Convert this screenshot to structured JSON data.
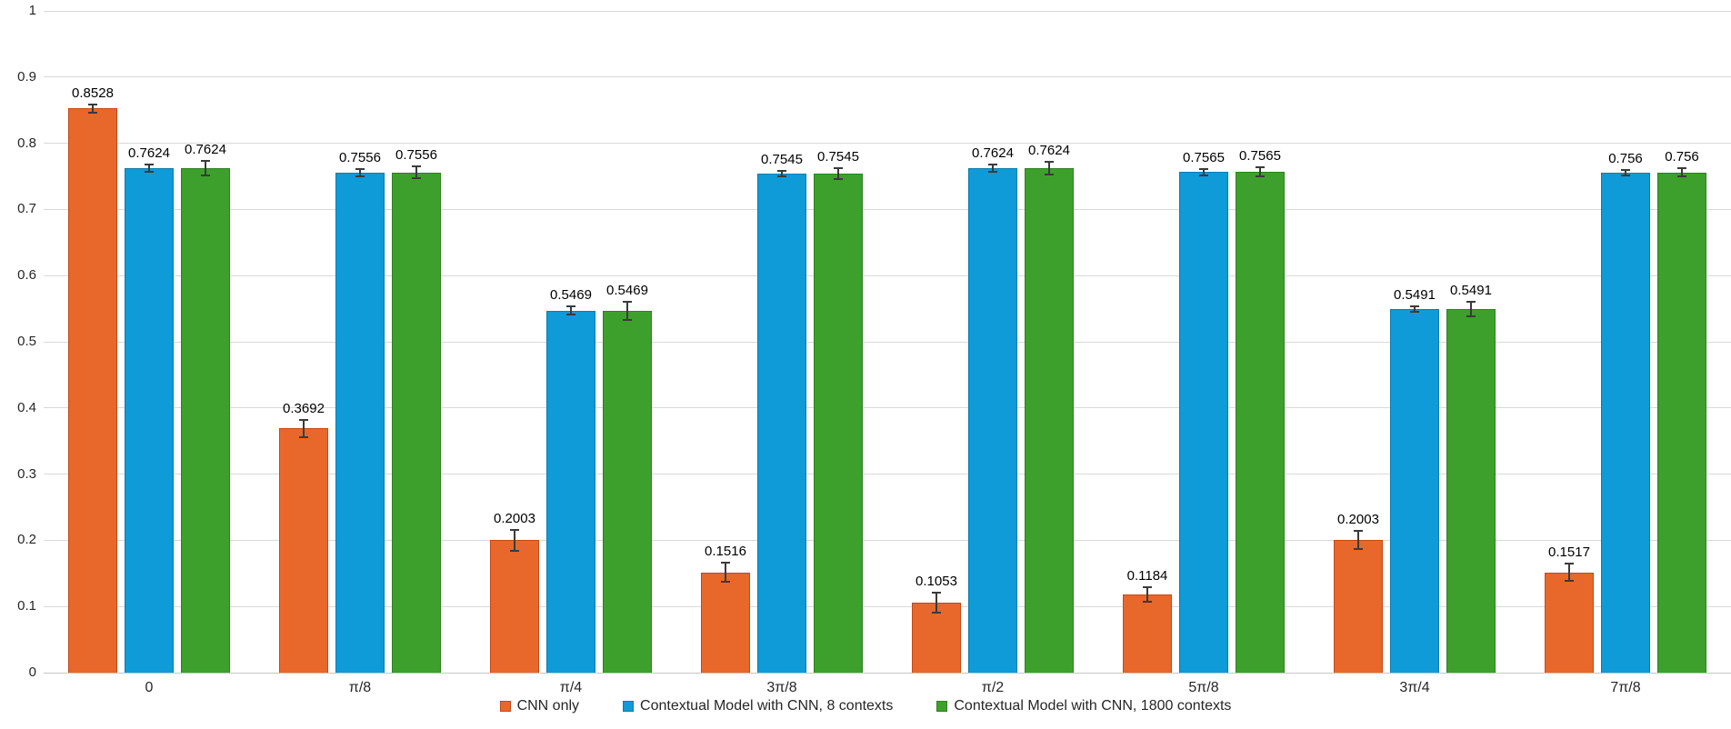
{
  "chart_data": {
    "type": "bar",
    "title": "",
    "xlabel": "",
    "ylabel": "",
    "ylim": [
      0,
      1
    ],
    "grid": true,
    "legend_position": "bottom",
    "y_ticks": [
      "1",
      "0.9",
      "0.8",
      "0.7",
      "0.6",
      "0.5",
      "0.4",
      "0.3",
      "0.2",
      "0.1",
      "0"
    ],
    "categories": [
      "0",
      "π/8",
      "π/4",
      "3π/8",
      "π/2",
      "5π/8",
      "3π/4",
      "7π/8"
    ],
    "series": [
      {
        "name": "CNN only",
        "color": "#e8672b",
        "border_color": "#c44a18",
        "values": [
          0.8528,
          0.3692,
          0.2003,
          0.1516,
          0.1053,
          0.1184,
          0.2003,
          0.1517
        ],
        "labels": [
          "0.8528",
          "0.3692",
          "0.2003",
          "0.1516",
          "0.1053",
          "0.1184",
          "0.2003",
          "0.1517"
        ],
        "errors": [
          0.006,
          0.013,
          0.016,
          0.014,
          0.015,
          0.011,
          0.014,
          0.013
        ]
      },
      {
        "name": "Contextual Model with CNN, 8 contexts",
        "color": "#0e9bd8",
        "border_color": "#0a7cae",
        "values": [
          0.7624,
          0.7556,
          0.5469,
          0.7545,
          0.7624,
          0.7565,
          0.5491,
          0.756
        ],
        "labels": [
          "0.7624",
          "0.7556",
          "0.5469",
          "0.7545",
          "0.7624",
          "0.7565",
          "0.5491",
          "0.756"
        ],
        "errors": [
          0.005,
          0.006,
          0.006,
          0.004,
          0.005,
          0.005,
          0.004,
          0.004
        ]
      },
      {
        "name": "Contextual Model with CNN, 1800 contexts",
        "color": "#3da02c",
        "border_color": "#2e8120",
        "values": [
          0.7624,
          0.7556,
          0.5469,
          0.7545,
          0.7624,
          0.7565,
          0.5491,
          0.756
        ],
        "labels": [
          "0.7624",
          "0.7556",
          "0.5469",
          "0.7545",
          "0.7624",
          "0.7565",
          "0.5491",
          "0.756"
        ],
        "errors": [
          0.011,
          0.009,
          0.014,
          0.008,
          0.009,
          0.007,
          0.011,
          0.006
        ]
      }
    ]
  }
}
